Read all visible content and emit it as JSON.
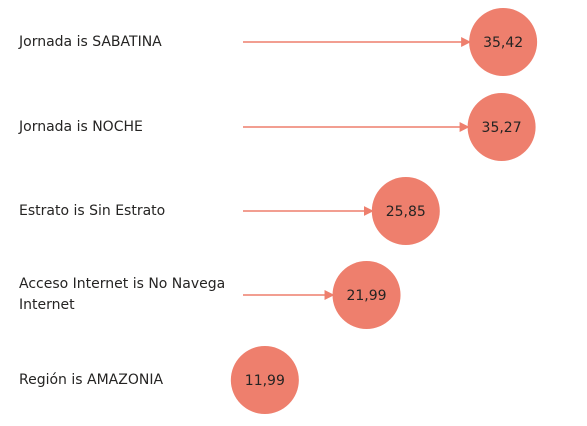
{
  "chart_data": {
    "type": "bubble-arrow",
    "categories": [
      "Jornada is SABATINA",
      "Jornada is NOCHE",
      "Estrato is Sin Estrato",
      "Acceso Internet is No Navega Internet",
      "Región is AMAZONIA"
    ],
    "values": [
      35.42,
      35.27,
      25.85,
      21.99,
      11.99
    ],
    "value_labels": [
      "35,42",
      "35,27",
      "25,85",
      "21,99",
      "11,99"
    ],
    "xlim": [
      0,
      40
    ]
  },
  "colors": {
    "bubble": "#ee7f6d",
    "arrow": "#ee7f6d",
    "label": "#252423"
  }
}
